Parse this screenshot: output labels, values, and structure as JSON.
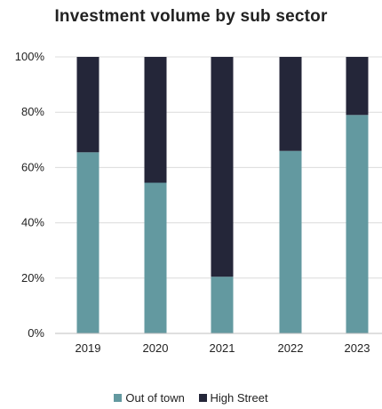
{
  "chart_data": {
    "type": "bar",
    "stacked": true,
    "title": "Investment volume by sub sector",
    "categories": [
      "2019",
      "2020",
      "2021",
      "2022",
      "2023"
    ],
    "series": [
      {
        "name": "Out of town",
        "color": "#6399a0",
        "values": [
          65.5,
          54.5,
          20.5,
          66,
          79
        ]
      },
      {
        "name": "High Street",
        "color": "#242639",
        "values": [
          34.5,
          45.5,
          79.5,
          34,
          21
        ]
      }
    ],
    "ylim": [
      0,
      100
    ],
    "yticks": [
      "0%",
      "20%",
      "40%",
      "60%",
      "80%",
      "100%"
    ],
    "ytick_values": [
      0,
      20,
      40,
      60,
      80,
      100
    ],
    "grid": true,
    "legend_position": "bottom"
  }
}
